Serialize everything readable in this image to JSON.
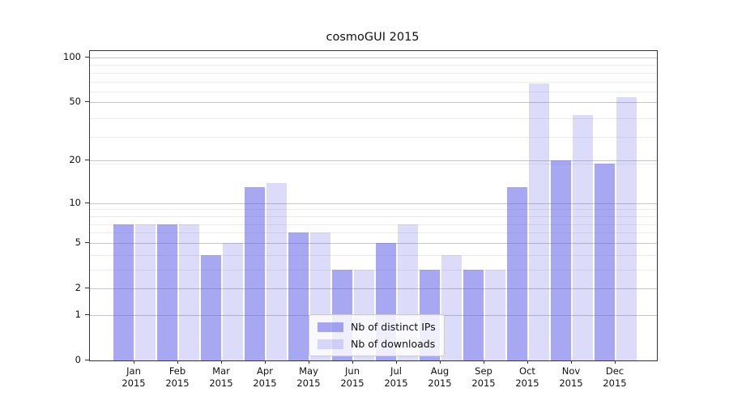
{
  "chart_data": {
    "type": "bar",
    "title": "cosmoGUI 2015",
    "categories": [
      "Jan",
      "Feb",
      "Mar",
      "Apr",
      "May",
      "Jun",
      "Jul",
      "Aug",
      "Sep",
      "Oct",
      "Nov",
      "Dec"
    ],
    "category_year": "2015",
    "series": [
      {
        "name": "Nb of distinct IPs",
        "color": "#6060e8",
        "alpha": 0.55,
        "values": [
          7,
          7,
          4,
          13,
          6,
          3,
          5,
          3,
          3,
          13,
          20,
          19
        ]
      },
      {
        "name": "Nb of downloads",
        "color": "#6060e8",
        "alpha": 0.22,
        "values": [
          7,
          7,
          5,
          14,
          6,
          3,
          7,
          4,
          3,
          67,
          41,
          54
        ]
      }
    ],
    "yscale": "log10(value+1)",
    "ylim": [
      0,
      100
    ],
    "yticks": [
      0,
      1,
      2,
      5,
      10,
      20,
      50,
      100
    ],
    "minor_gridlines_plotted": [
      4,
      5,
      7,
      8,
      9,
      10,
      20,
      30,
      40,
      60,
      70,
      80,
      90
    ],
    "grid": true,
    "legend_position": "lower center"
  }
}
